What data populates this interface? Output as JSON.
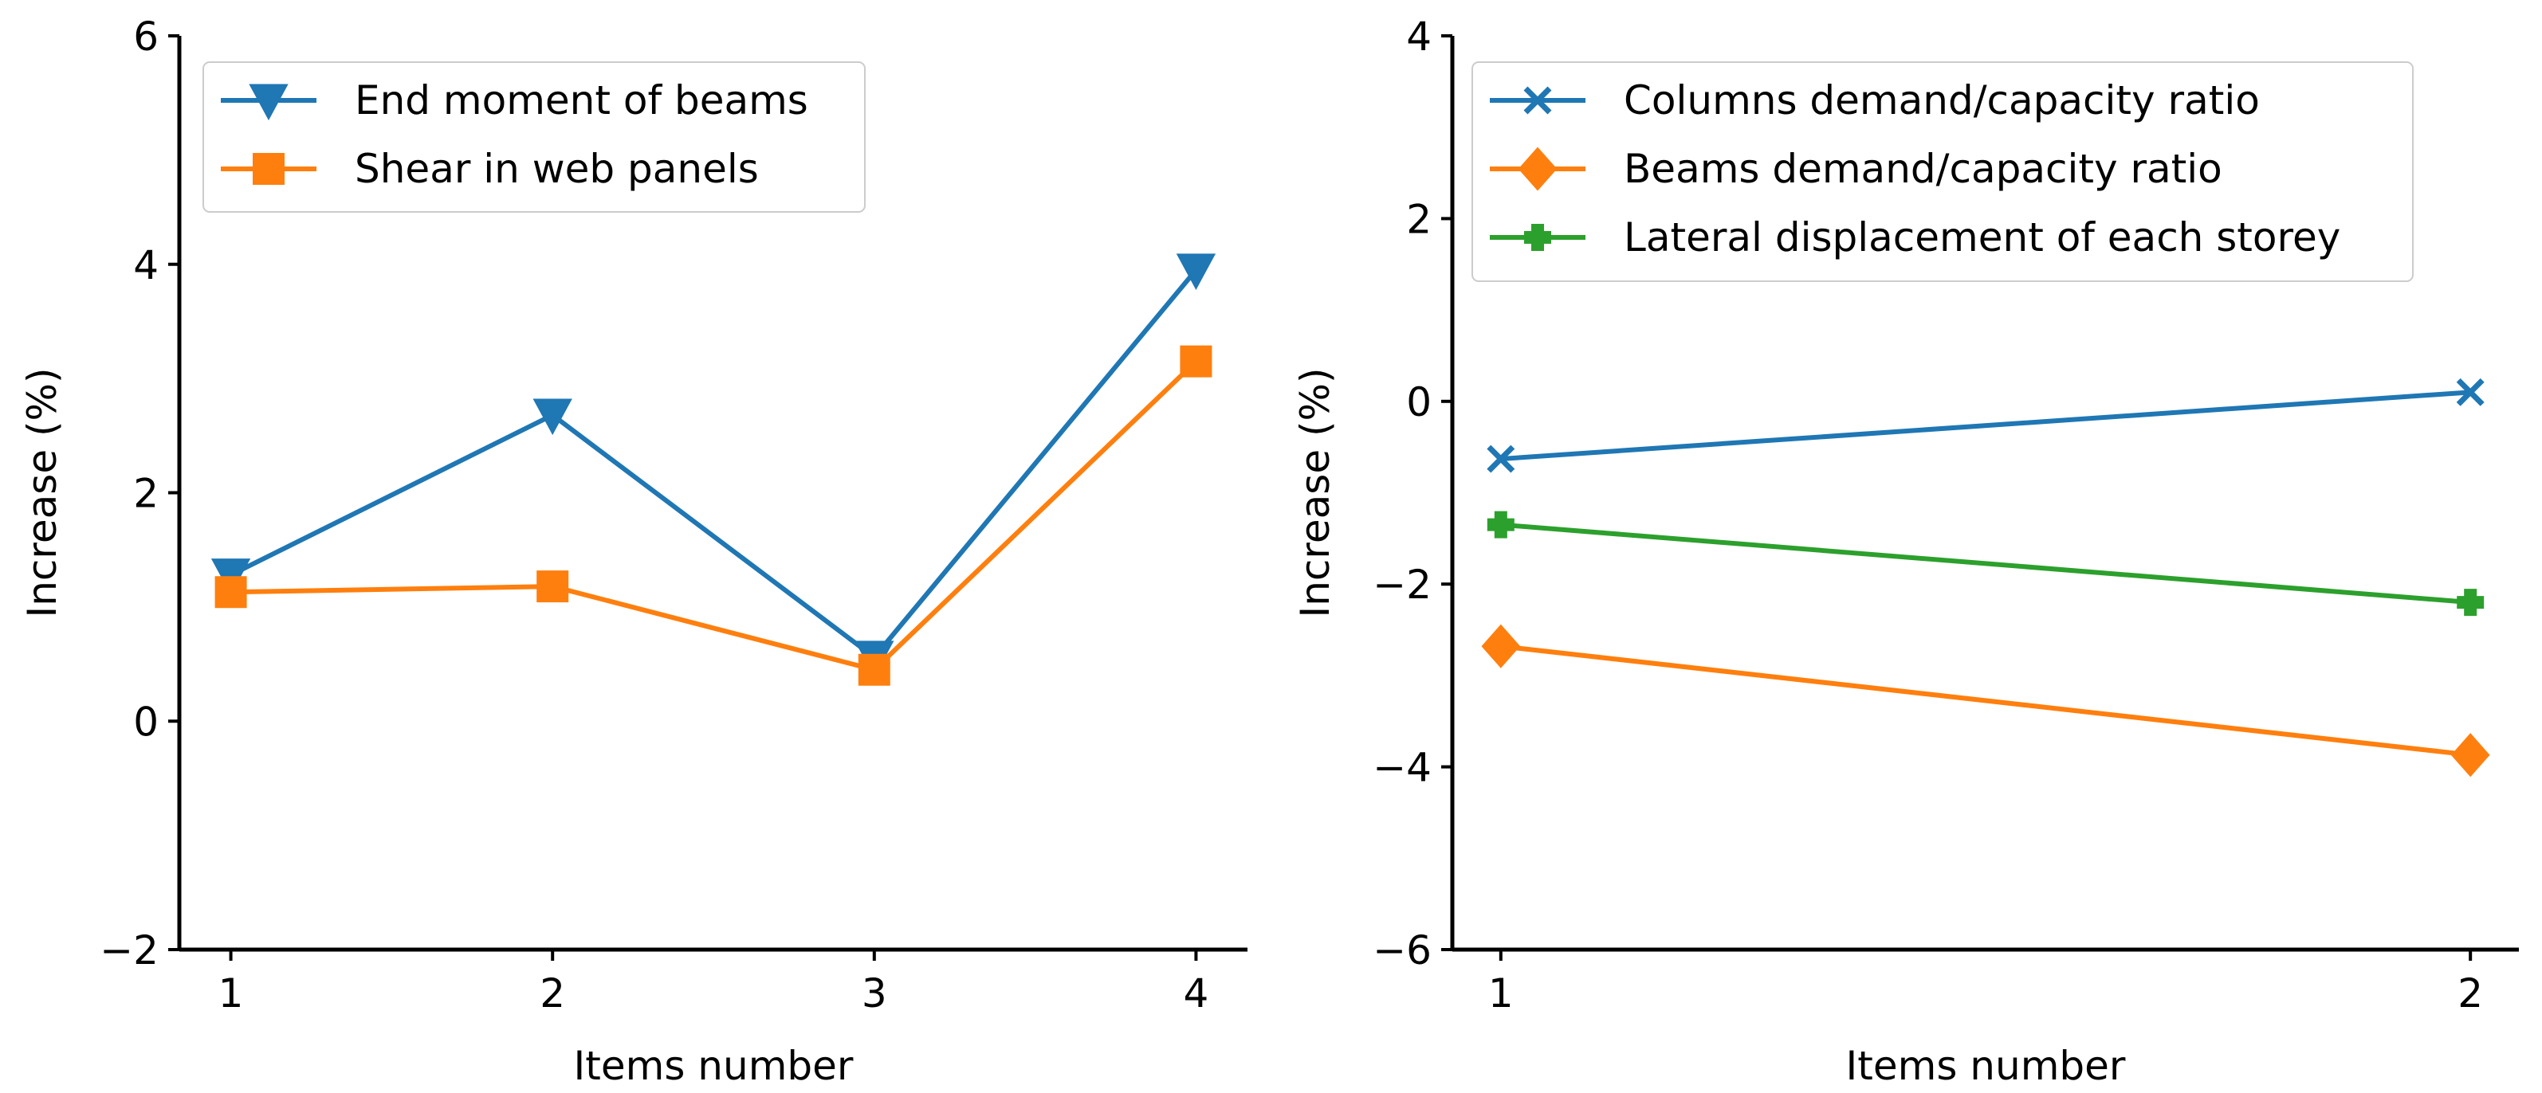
{
  "chart_data": [
    {
      "type": "line",
      "xlabel": "Items number",
      "ylabel": "Increase (%)",
      "xlim": [
        0.84,
        4.16
      ],
      "ylim": [
        -2,
        6
      ],
      "xticks": [
        1,
        2,
        3,
        4
      ],
      "yticks": [
        -2,
        0,
        2,
        4,
        6
      ],
      "x": [
        1,
        2,
        3,
        4
      ],
      "grid": false,
      "legend_position": "top-left",
      "series": [
        {
          "name": "End moment of beams",
          "color": "#1f77b4",
          "marker": "triangle-down",
          "values": [
            1.28,
            2.68,
            0.56,
            3.95
          ]
        },
        {
          "name": "Shear in web panels",
          "color": "#ff7f0e",
          "marker": "square",
          "values": [
            1.13,
            1.18,
            0.45,
            3.15
          ]
        }
      ]
    },
    {
      "type": "line",
      "xlabel": "Items number",
      "ylabel": "Increase (%)",
      "xlim": [
        0.95,
        2.05
      ],
      "ylim": [
        -6,
        4
      ],
      "xticks": [
        1,
        2
      ],
      "yticks": [
        -6,
        -4,
        -2,
        0,
        2,
        4
      ],
      "x": [
        1,
        2
      ],
      "grid": false,
      "legend_position": "top-left",
      "series": [
        {
          "name": "Columns demand/capacity ratio",
          "color": "#1f77b4",
          "marker": "x",
          "values": [
            -0.63,
            0.1
          ]
        },
        {
          "name": "Beams demand/capacity ratio",
          "color": "#ff7f0e",
          "marker": "diamond",
          "values": [
            -2.68,
            -3.87
          ]
        },
        {
          "name": "Lateral displacement of each storey",
          "color": "#2ca02c",
          "marker": "plus-filled",
          "values": [
            -1.35,
            -2.2
          ]
        }
      ]
    }
  ]
}
